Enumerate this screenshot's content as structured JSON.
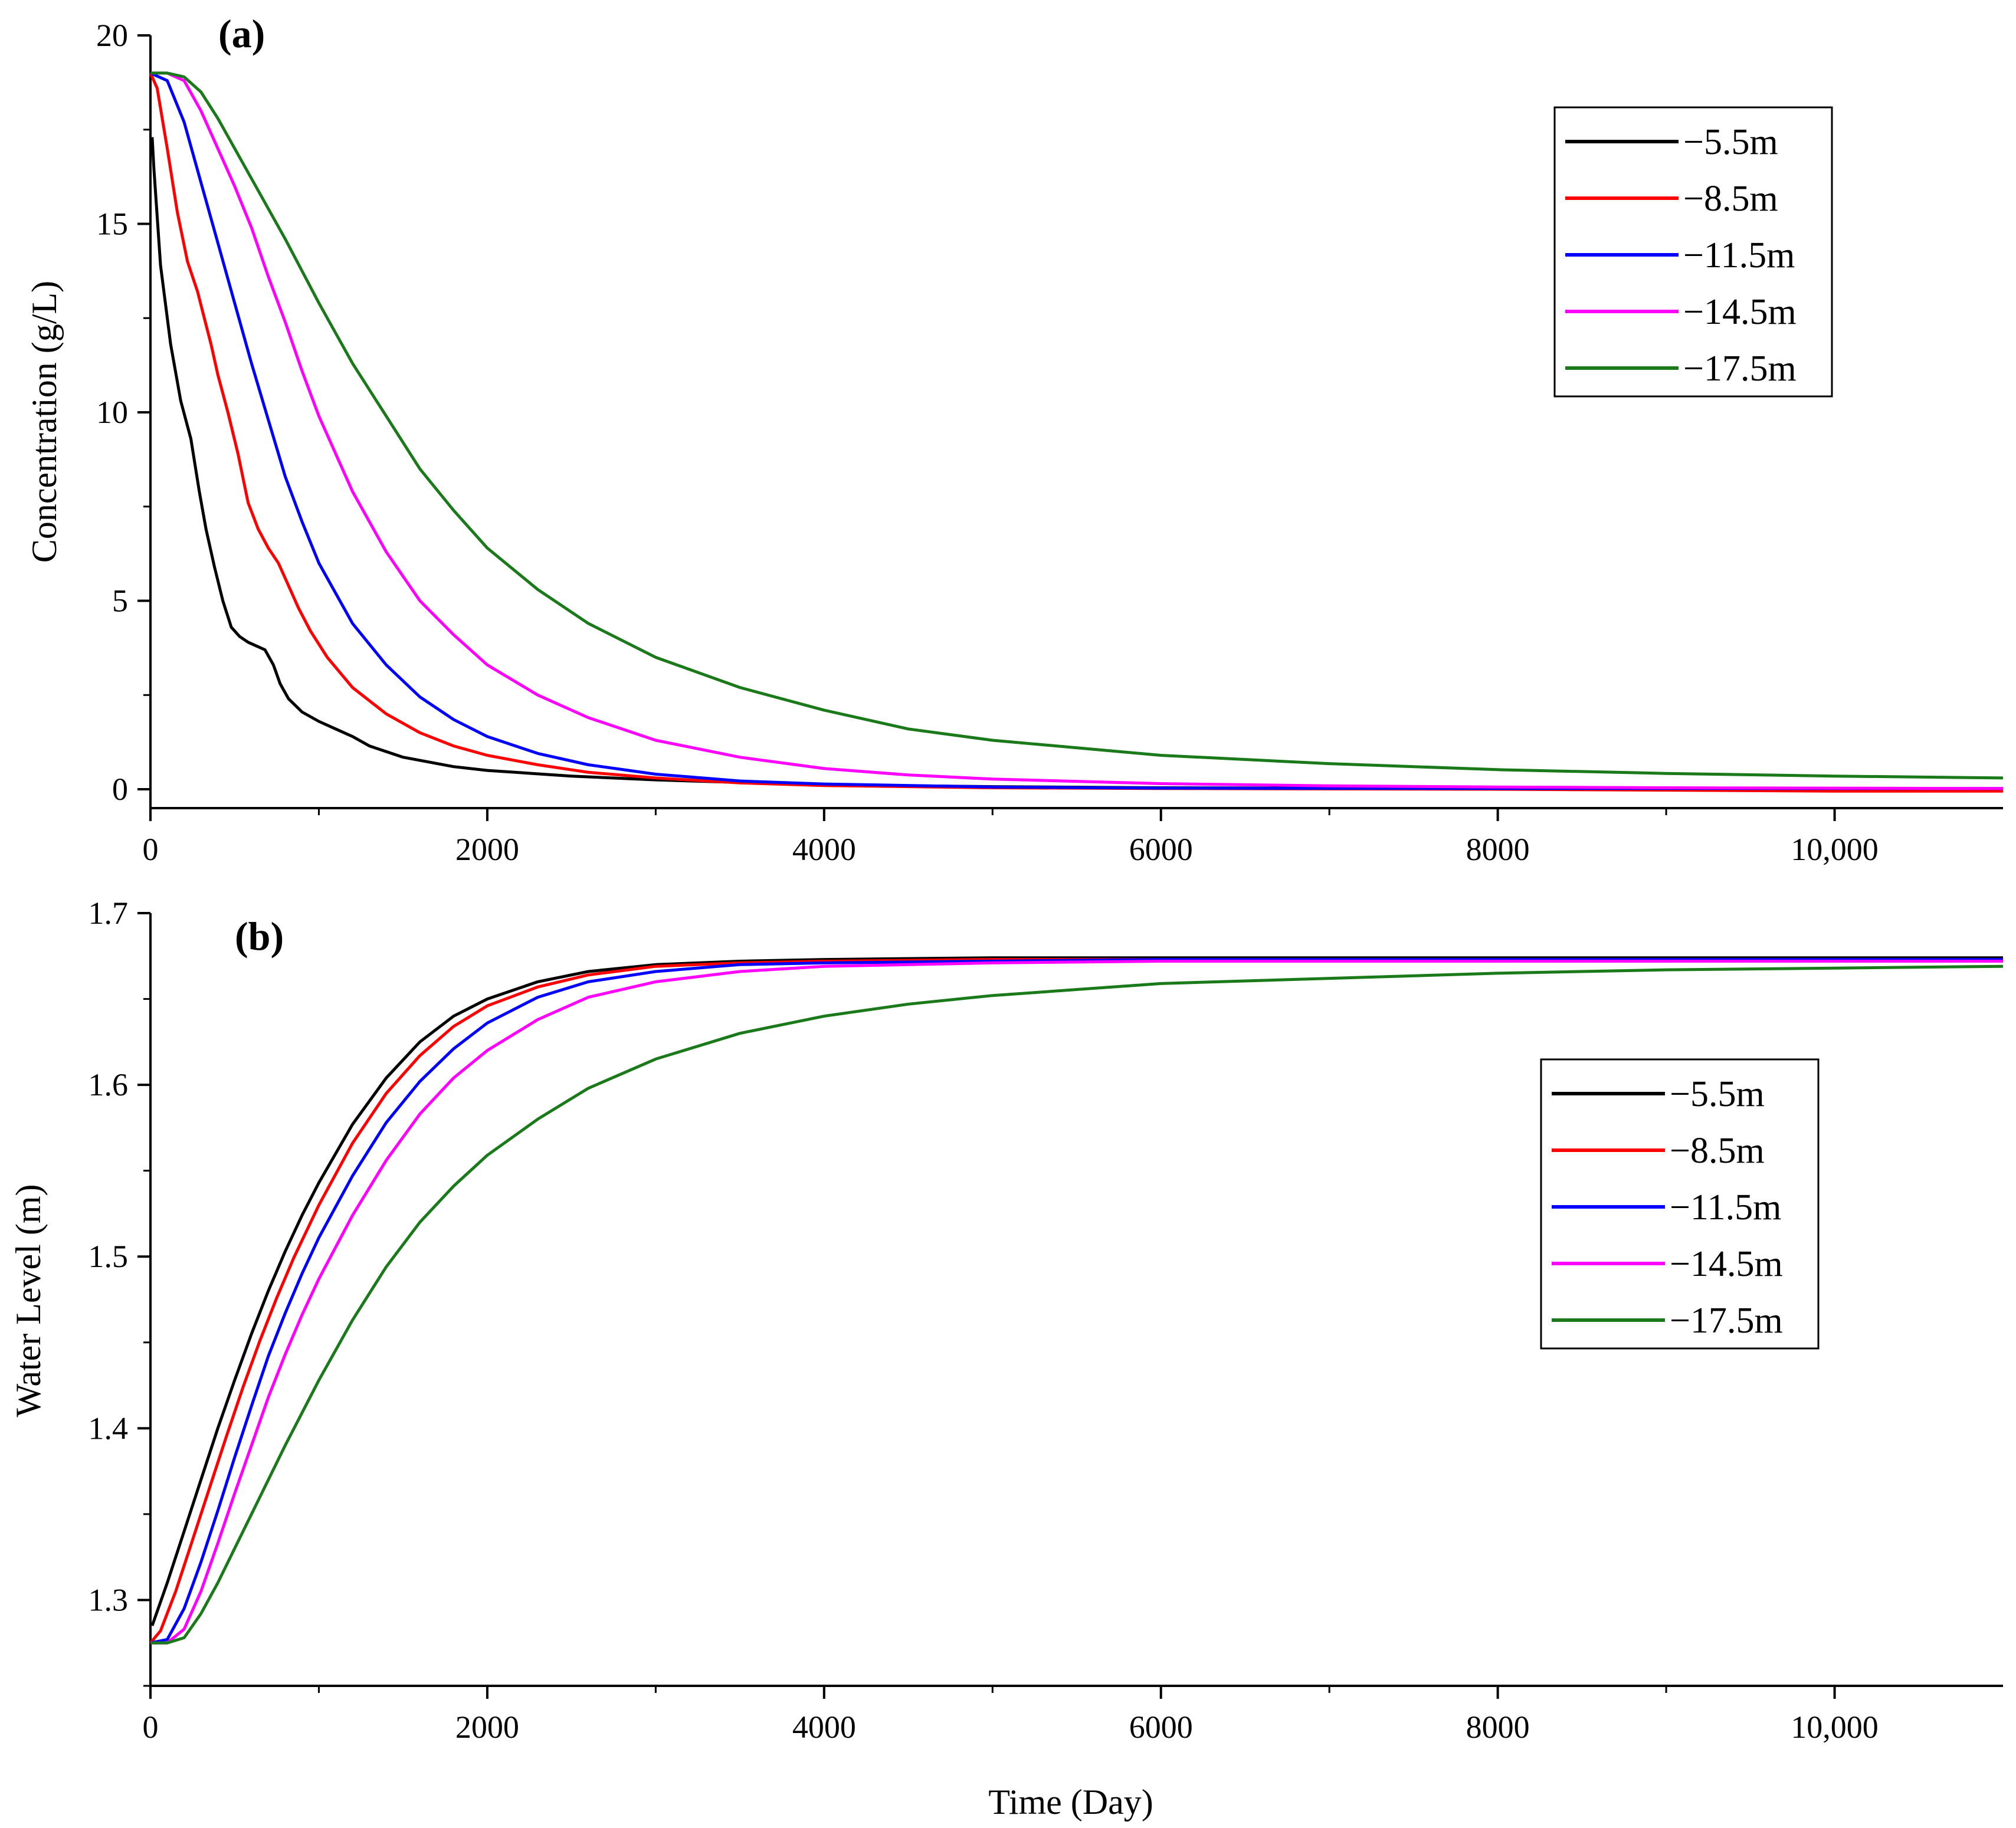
{
  "chart_data": [
    {
      "id": "a",
      "type": "line",
      "panel_label": "(a)",
      "ylabel": "Concentration (g/L)",
      "xlabel": "",
      "xlim": [
        0,
        11000
      ],
      "ylim": [
        -0.5,
        20
      ],
      "x_ticks": [
        0,
        2000,
        4000,
        6000,
        8000,
        10000
      ],
      "x_tick_labels": [
        "0",
        "2000",
        "4000",
        "6000",
        "8000",
        "10,000"
      ],
      "y_ticks": [
        0,
        5,
        10,
        15,
        20
      ],
      "y_tick_labels": [
        "0",
        "5",
        "10",
        "15",
        "20"
      ],
      "legend_position": "top-right",
      "series": [
        {
          "name": "−5.5m",
          "color": "#000000",
          "x": [
            10,
            20,
            60,
            120,
            180,
            240,
            290,
            330,
            380,
            430,
            480,
            530,
            580,
            630,
            680,
            730,
            770,
            820,
            900,
            1000,
            1100,
            1200,
            1300,
            1500,
            1800,
            2000,
            2500,
            3000,
            3500,
            4000,
            5000,
            6000,
            8000,
            10000,
            11000
          ],
          "y": [
            17.3,
            16.5,
            13.9,
            11.8,
            10.3,
            9.3,
            7.9,
            6.9,
            5.9,
            5.0,
            4.3,
            4.05,
            3.9,
            3.8,
            3.7,
            3.3,
            2.8,
            2.4,
            2.05,
            1.8,
            1.6,
            1.4,
            1.15,
            0.85,
            0.6,
            0.5,
            0.35,
            0.25,
            0.18,
            0.12,
            0.07,
            0.04,
            0.02,
            0.01,
            0.0
          ]
        },
        {
          "name": "−8.5m",
          "color": "#ff0000",
          "x": [
            0,
            40,
            100,
            160,
            220,
            280,
            320,
            360,
            400,
            460,
            520,
            580,
            640,
            700,
            760,
            820,
            880,
            950,
            1050,
            1200,
            1400,
            1600,
            1800,
            2000,
            2300,
            2600,
            3000,
            3500,
            4000,
            5000,
            6000,
            8000,
            10000,
            11000
          ],
          "y": [
            19.0,
            18.6,
            17.0,
            15.3,
            14.0,
            13.2,
            12.5,
            11.8,
            11.0,
            10.0,
            8.9,
            7.6,
            6.9,
            6.4,
            6.0,
            5.4,
            4.8,
            4.2,
            3.5,
            2.7,
            2.0,
            1.5,
            1.15,
            0.9,
            0.65,
            0.45,
            0.3,
            0.17,
            0.1,
            0.04,
            0.02,
            0.0,
            -0.05,
            -0.05
          ]
        },
        {
          "name": "−11.5m",
          "color": "#0000ff",
          "x": [
            0,
            100,
            200,
            300,
            400,
            500,
            600,
            700,
            800,
            900,
            1000,
            1200,
            1400,
            1600,
            1800,
            2000,
            2300,
            2600,
            3000,
            3500,
            4000,
            5000,
            6000,
            8000,
            10000,
            11000
          ],
          "y": [
            19.0,
            18.8,
            17.7,
            16.1,
            14.5,
            12.9,
            11.3,
            9.8,
            8.3,
            7.1,
            6.0,
            4.4,
            3.3,
            2.45,
            1.85,
            1.4,
            0.95,
            0.65,
            0.4,
            0.22,
            0.14,
            0.06,
            0.03,
            0.02,
            0.02,
            0.02
          ]
        },
        {
          "name": "−14.5m",
          "color": "#ff00ff",
          "x": [
            0,
            100,
            200,
            300,
            400,
            500,
            600,
            700,
            800,
            900,
            1000,
            1200,
            1400,
            1600,
            1800,
            2000,
            2300,
            2600,
            3000,
            3500,
            4000,
            4500,
            5000,
            6000,
            7000,
            8000,
            9000,
            10000,
            11000
          ],
          "y": [
            19.0,
            19.0,
            18.8,
            18.0,
            17.0,
            16.0,
            14.9,
            13.6,
            12.4,
            11.1,
            9.9,
            7.9,
            6.3,
            5.0,
            4.1,
            3.3,
            2.5,
            1.9,
            1.3,
            0.85,
            0.55,
            0.38,
            0.27,
            0.15,
            0.09,
            0.06,
            0.04,
            0.03,
            0.02
          ]
        },
        {
          "name": "−17.5m",
          "color": "#1a7a1a",
          "x": [
            0,
            100,
            200,
            300,
            400,
            600,
            800,
            1000,
            1200,
            1400,
            1600,
            1800,
            2000,
            2300,
            2600,
            3000,
            3500,
            4000,
            4500,
            5000,
            6000,
            7000,
            8000,
            9000,
            10000,
            11000
          ],
          "y": [
            19.0,
            19.0,
            18.9,
            18.5,
            17.8,
            16.2,
            14.6,
            12.9,
            11.3,
            9.9,
            8.5,
            7.4,
            6.4,
            5.3,
            4.4,
            3.5,
            2.7,
            2.1,
            1.6,
            1.3,
            0.9,
            0.68,
            0.52,
            0.42,
            0.35,
            0.3
          ]
        }
      ]
    },
    {
      "id": "b",
      "type": "line",
      "panel_label": "(b)",
      "ylabel": "Water Level (m)",
      "xlabel": "Time (Day)",
      "xlim": [
        0,
        11000
      ],
      "ylim": [
        1.25,
        1.7
      ],
      "x_ticks": [
        0,
        2000,
        4000,
        6000,
        8000,
        10000
      ],
      "x_tick_labels": [
        "0",
        "2000",
        "4000",
        "6000",
        "8000",
        "10,000"
      ],
      "y_ticks": [
        1.3,
        1.4,
        1.5,
        1.6,
        1.7
      ],
      "y_tick_labels": [
        "1.3",
        "1.4",
        "1.5",
        "1.6",
        "1.7"
      ],
      "legend_position": "middle-right",
      "series": [
        {
          "name": "−5.5m",
          "color": "#000000",
          "x": [
            10,
            100,
            200,
            300,
            400,
            500,
            600,
            700,
            800,
            900,
            1000,
            1200,
            1400,
            1600,
            1800,
            2000,
            2300,
            2600,
            3000,
            3500,
            4000,
            5000,
            6000,
            8000,
            10000,
            11000
          ],
          "y": [
            1.285,
            1.31,
            1.34,
            1.37,
            1.4,
            1.428,
            1.455,
            1.48,
            1.503,
            1.524,
            1.543,
            1.577,
            1.604,
            1.625,
            1.64,
            1.65,
            1.66,
            1.666,
            1.67,
            1.672,
            1.673,
            1.674,
            1.674,
            1.674,
            1.674,
            1.674
          ]
        },
        {
          "name": "−8.5m",
          "color": "#ff0000",
          "x": [
            0,
            60,
            150,
            250,
            350,
            450,
            550,
            650,
            750,
            850,
            1000,
            1200,
            1400,
            1600,
            1800,
            2000,
            2300,
            2600,
            3000,
            3500,
            4000,
            5000,
            6000,
            8000,
            10000,
            11000
          ],
          "y": [
            1.275,
            1.282,
            1.305,
            1.335,
            1.365,
            1.395,
            1.424,
            1.451,
            1.476,
            1.499,
            1.53,
            1.566,
            1.595,
            1.617,
            1.634,
            1.646,
            1.657,
            1.664,
            1.669,
            1.671,
            1.672,
            1.673,
            1.673,
            1.673,
            1.673,
            1.673
          ]
        },
        {
          "name": "−11.5m",
          "color": "#0000ff",
          "x": [
            0,
            100,
            200,
            300,
            400,
            500,
            600,
            700,
            800,
            900,
            1000,
            1200,
            1400,
            1600,
            1800,
            2000,
            2300,
            2600,
            3000,
            3500,
            4000,
            5000,
            6000,
            8000,
            10000,
            11000
          ],
          "y": [
            1.275,
            1.277,
            1.295,
            1.322,
            1.352,
            1.383,
            1.413,
            1.442,
            1.467,
            1.49,
            1.511,
            1.547,
            1.578,
            1.602,
            1.621,
            1.636,
            1.651,
            1.66,
            1.666,
            1.67,
            1.671,
            1.672,
            1.673,
            1.673,
            1.673,
            1.673
          ]
        },
        {
          "name": "−14.5m",
          "color": "#ff00ff",
          "x": [
            0,
            100,
            200,
            300,
            400,
            500,
            600,
            700,
            800,
            900,
            1000,
            1200,
            1400,
            1600,
            1800,
            2000,
            2300,
            2600,
            3000,
            3500,
            4000,
            5000,
            6000,
            8000,
            10000,
            11000
          ],
          "y": [
            1.275,
            1.275,
            1.283,
            1.305,
            1.333,
            1.362,
            1.39,
            1.418,
            1.443,
            1.466,
            1.487,
            1.524,
            1.556,
            1.583,
            1.604,
            1.62,
            1.638,
            1.651,
            1.66,
            1.666,
            1.669,
            1.671,
            1.672,
            1.672,
            1.672,
            1.672
          ]
        },
        {
          "name": "−17.5m",
          "color": "#1a7a1a",
          "x": [
            0,
            100,
            200,
            300,
            400,
            500,
            600,
            800,
            1000,
            1200,
            1400,
            1600,
            1800,
            2000,
            2300,
            2600,
            3000,
            3500,
            4000,
            4500,
            5000,
            6000,
            7000,
            8000,
            9000,
            10000,
            11000
          ],
          "y": [
            1.275,
            1.275,
            1.278,
            1.292,
            1.31,
            1.33,
            1.35,
            1.39,
            1.428,
            1.463,
            1.494,
            1.52,
            1.541,
            1.559,
            1.58,
            1.598,
            1.615,
            1.63,
            1.64,
            1.647,
            1.652,
            1.659,
            1.662,
            1.665,
            1.667,
            1.668,
            1.669
          ]
        }
      ]
    }
  ]
}
